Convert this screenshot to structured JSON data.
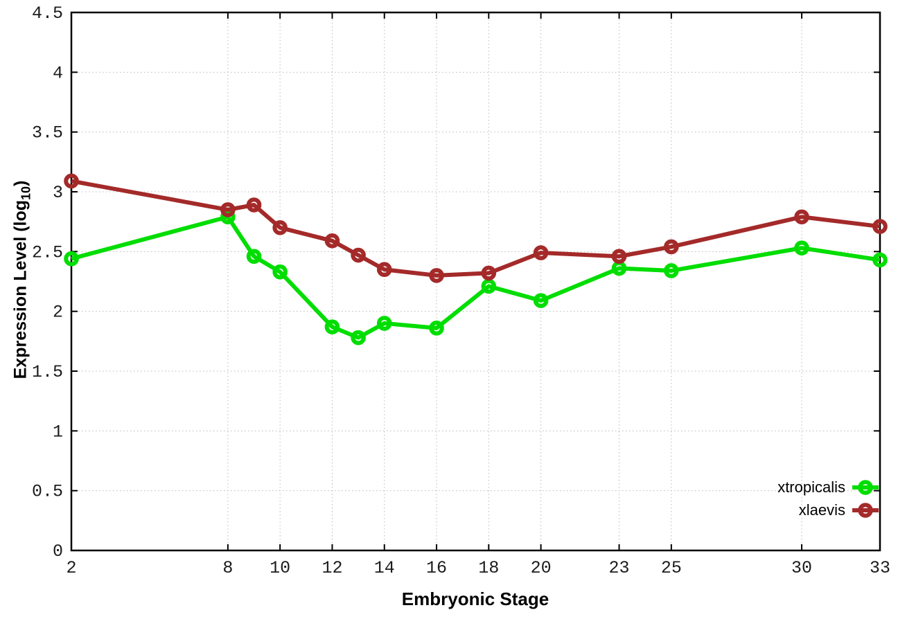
{
  "chart_data": {
    "type": "line",
    "title": "",
    "xlabel": "Embryonic Stage",
    "ylabel": "Expression Level (log10)",
    "ylabel_display": {
      "prefix": "Expression Level (log",
      "subscript": "10",
      "suffix": ")"
    },
    "x": [
      2,
      8,
      9,
      10,
      12,
      13,
      14,
      16,
      18,
      20,
      23,
      25,
      30,
      33
    ],
    "series": [
      {
        "name": "xtropicalis",
        "color": "#00dd00",
        "values": [
          2.44,
          2.79,
          2.46,
          2.33,
          1.87,
          1.78,
          1.9,
          1.86,
          2.21,
          2.09,
          2.36,
          2.34,
          2.53,
          2.43
        ]
      },
      {
        "name": "xlaevis",
        "color": "#a42a2a",
        "values": [
          3.09,
          2.85,
          2.89,
          2.7,
          2.59,
          2.47,
          2.35,
          2.3,
          2.32,
          2.49,
          2.46,
          2.54,
          2.79,
          2.71
        ]
      }
    ],
    "xlim": [
      2,
      33
    ],
    "ylim": [
      0,
      4.5
    ],
    "xticks": [
      2,
      8,
      10,
      12,
      14,
      16,
      18,
      20,
      23,
      25,
      30,
      33
    ],
    "yticks": [
      0,
      0.5,
      1,
      1.5,
      2,
      2.5,
      3,
      3.5,
      4,
      4.5
    ],
    "grid": "dotted",
    "grid_color": "#b9b9b9",
    "axis_color": "#000000",
    "tick_label_color": "#1c1c1c",
    "background": "#ffffff",
    "legend_position": "inside-bottom-right",
    "marker": "open-circle"
  }
}
